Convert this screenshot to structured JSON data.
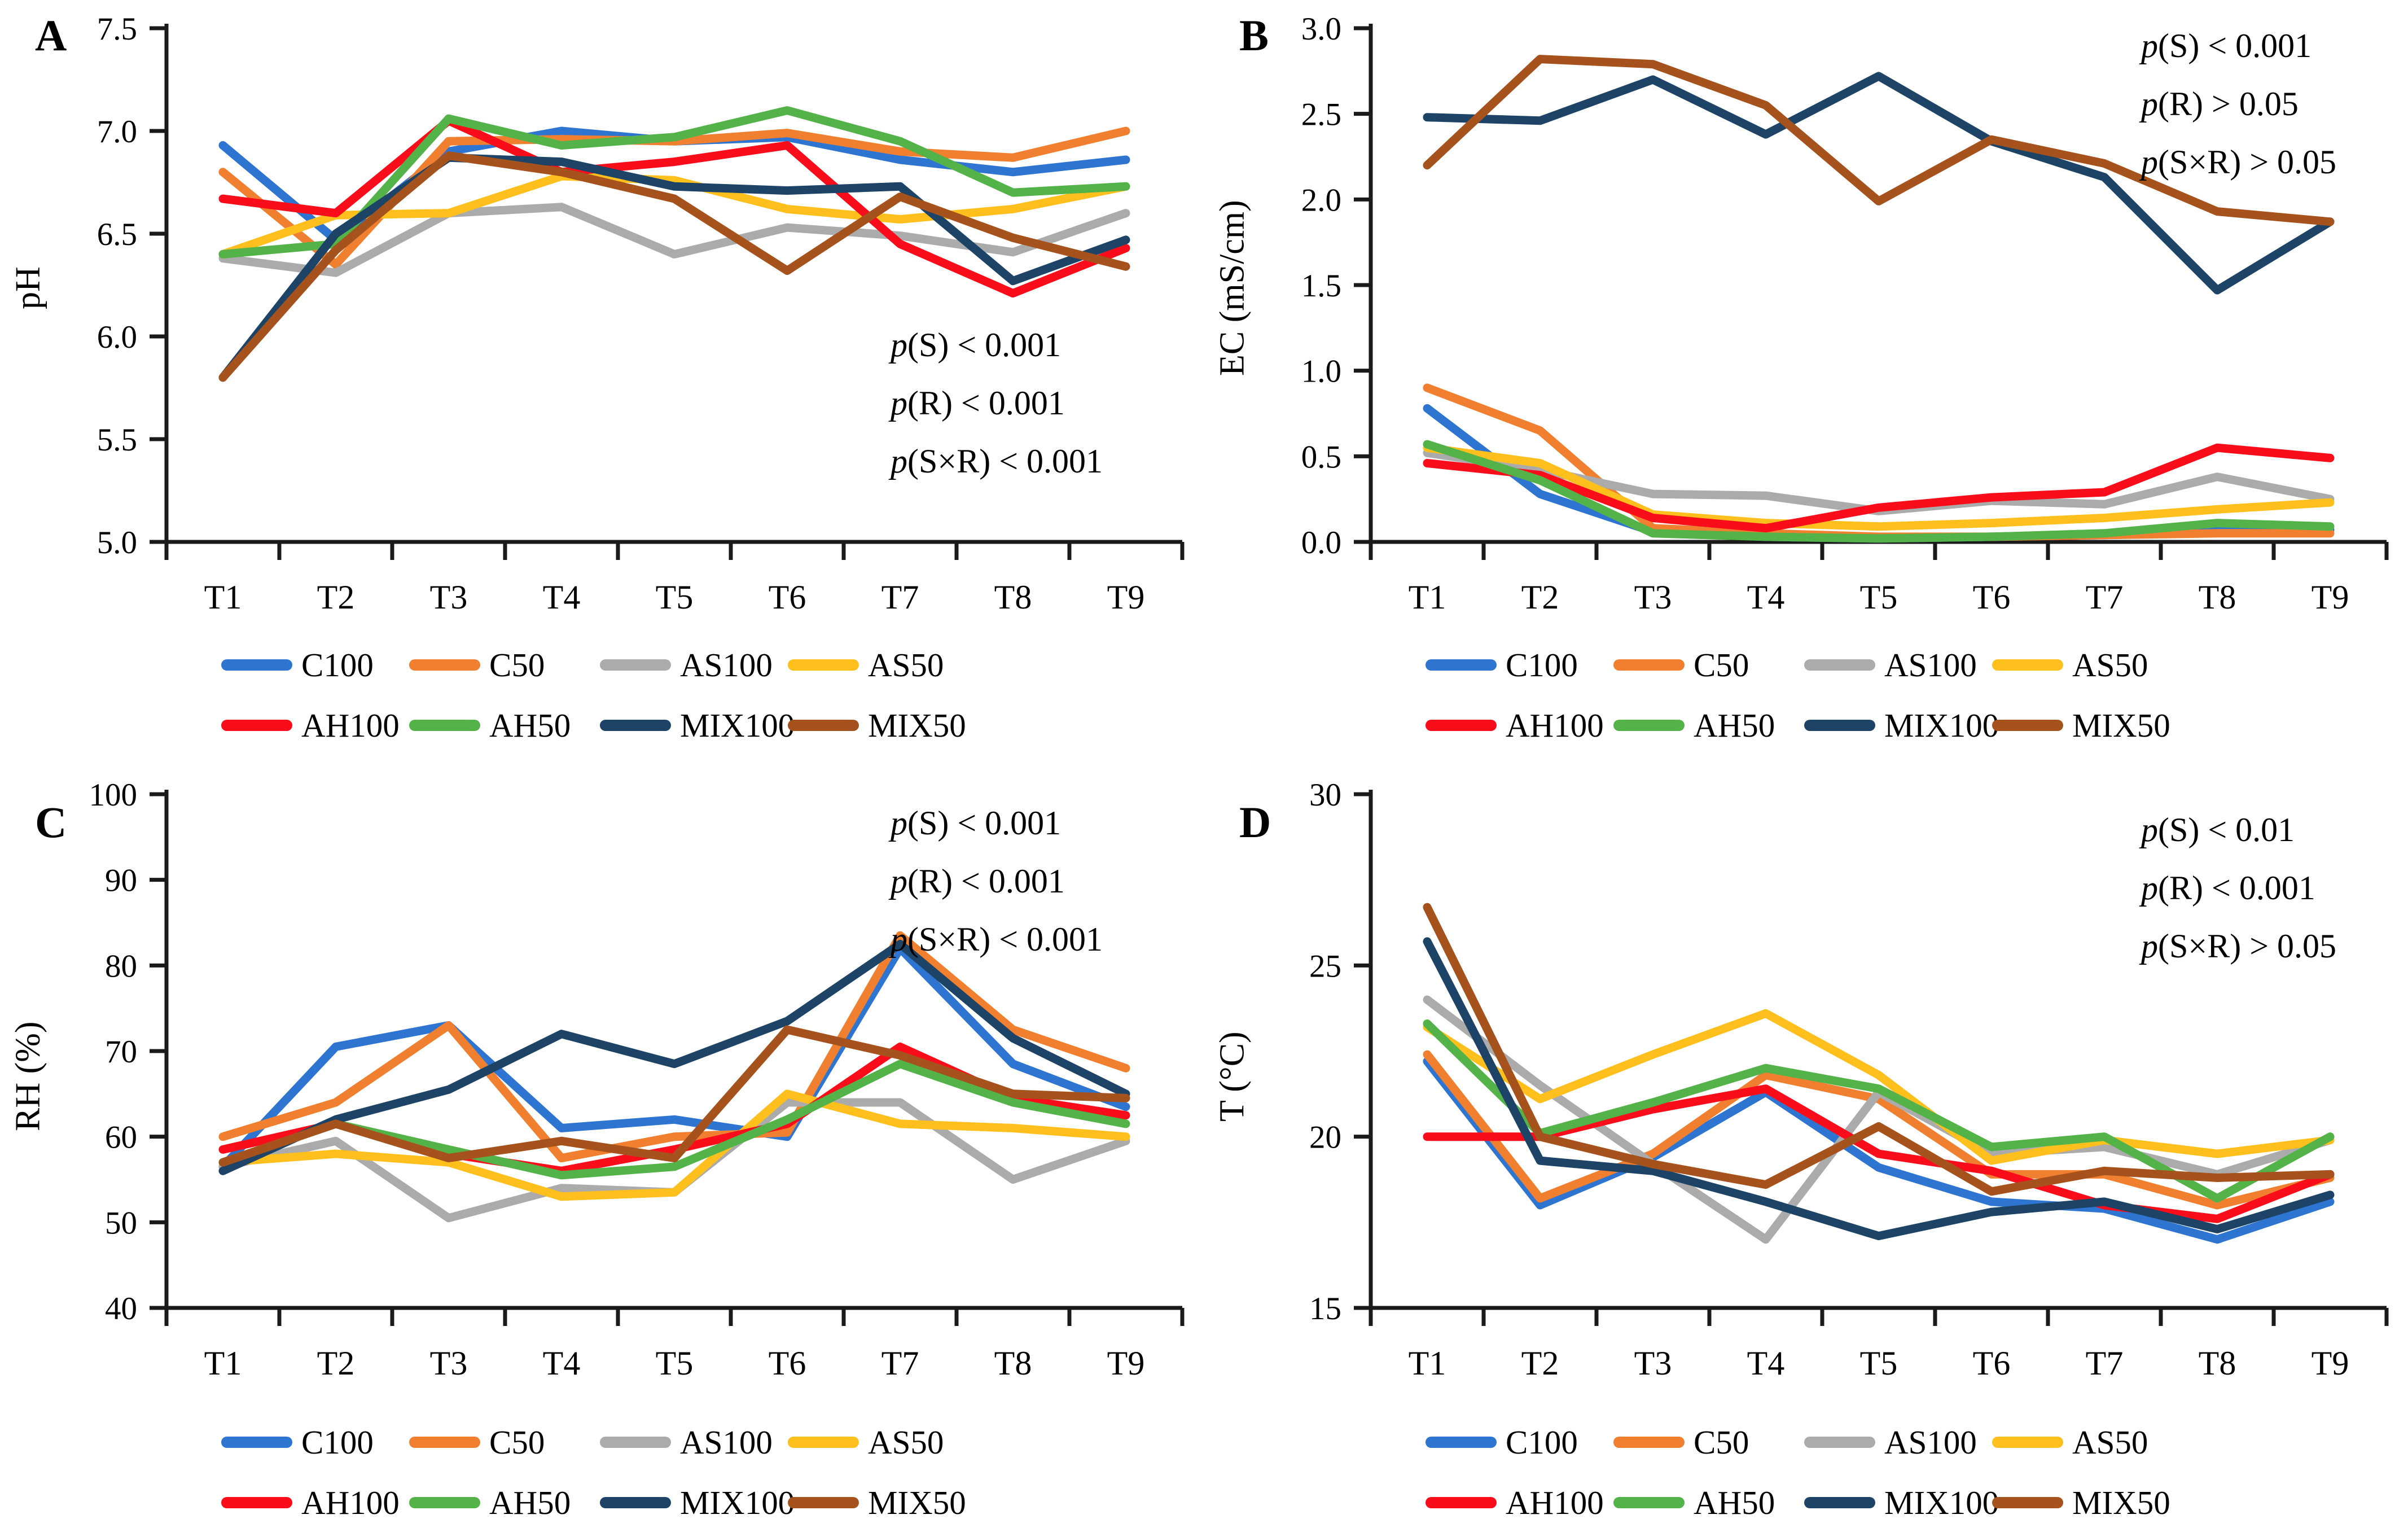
{
  "figure": {
    "background": "#ffffff",
    "colors": {
      "C100": "#2E75D2",
      "C50": "#F0802F",
      "AS100": "#ABABAB",
      "AS50": "#FFC01E",
      "AH100": "#F90D1B",
      "AH50": "#54B348",
      "MIX100": "#1D4466",
      "MIX50": "#A6521D"
    },
    "axis_color": "#1a1a1a",
    "legend": {
      "items": [
        {
          "key": "C100",
          "label": "C100"
        },
        {
          "key": "C50",
          "label": "C50"
        },
        {
          "key": "AS100",
          "label": "AS100"
        },
        {
          "key": "AS50",
          "label": "AS50"
        },
        {
          "key": "AH100",
          "label": "AH100"
        },
        {
          "key": "AH50",
          "label": "AH50"
        },
        {
          "key": "MIX100",
          "label": "MIX100"
        },
        {
          "key": "MIX50",
          "label": "MIX50"
        }
      ]
    }
  },
  "chart_data": [
    {
      "panel": "A",
      "type": "line",
      "ylabel": "pH",
      "categories": [
        "T1",
        "T2",
        "T3",
        "T4",
        "T5",
        "T6",
        "T7",
        "T8",
        "T9"
      ],
      "ylim": [
        5.0,
        7.5
      ],
      "ytick_step": 0.5,
      "ytick_decimals": 1,
      "grid": false,
      "legend_position": "bottom",
      "annotation": [
        {
          "p": "p",
          "rest": "(S) < 0.001"
        },
        {
          "p": "p",
          "rest": "(R) < 0.001"
        },
        {
          "p": "p",
          "rest": "(S×R) < 0.001"
        }
      ],
      "series": [
        {
          "name": "C100",
          "values": [
            6.93,
            6.47,
            6.9,
            7.0,
            6.95,
            6.97,
            6.86,
            6.8,
            6.86
          ]
        },
        {
          "name": "C50",
          "values": [
            6.8,
            6.35,
            6.95,
            6.96,
            6.95,
            6.99,
            6.9,
            6.87,
            7.0
          ]
        },
        {
          "name": "AS100",
          "values": [
            6.38,
            6.31,
            6.6,
            6.63,
            6.4,
            6.53,
            6.49,
            6.41,
            6.6
          ]
        },
        {
          "name": "AS50",
          "values": [
            6.4,
            6.59,
            6.6,
            6.78,
            6.76,
            6.62,
            6.57,
            6.62,
            6.73
          ]
        },
        {
          "name": "AH100",
          "values": [
            6.67,
            6.6,
            7.05,
            6.8,
            6.85,
            6.93,
            6.45,
            6.21,
            6.43
          ]
        },
        {
          "name": "AH50",
          "values": [
            6.4,
            6.45,
            7.06,
            6.93,
            6.97,
            7.1,
            6.95,
            6.7,
            6.73
          ]
        },
        {
          "name": "MIX100",
          "values": [
            5.8,
            6.5,
            6.87,
            6.85,
            6.73,
            6.71,
            6.73,
            6.27,
            6.47
          ]
        },
        {
          "name": "MIX50",
          "values": [
            5.8,
            6.42,
            6.88,
            6.8,
            6.67,
            6.32,
            6.68,
            6.48,
            6.34
          ]
        }
      ]
    },
    {
      "panel": "B",
      "type": "line",
      "ylabel": "EC (mS/cm)",
      "categories": [
        "T1",
        "T2",
        "T3",
        "T4",
        "T5",
        "T6",
        "T7",
        "T8",
        "T9"
      ],
      "ylim": [
        0.0,
        3.0
      ],
      "ytick_step": 0.5,
      "ytick_decimals": 1,
      "grid": false,
      "legend_position": "bottom",
      "annotation": [
        {
          "p": "p",
          "rest": "(S) < 0.001"
        },
        {
          "p": "p",
          "rest": "(R) > 0.05"
        },
        {
          "p": "p",
          "rest": "(S×R) > 0.05"
        }
      ],
      "series": [
        {
          "name": "C100",
          "values": [
            0.78,
            0.28,
            0.06,
            0.03,
            0.02,
            0.03,
            0.04,
            0.08,
            0.07
          ]
        },
        {
          "name": "C50",
          "values": [
            0.9,
            0.65,
            0.08,
            0.05,
            0.03,
            0.03,
            0.04,
            0.05,
            0.05
          ]
        },
        {
          "name": "AS100",
          "values": [
            0.52,
            0.42,
            0.28,
            0.27,
            0.18,
            0.24,
            0.22,
            0.38,
            0.25
          ]
        },
        {
          "name": "AS50",
          "values": [
            0.55,
            0.46,
            0.16,
            0.11,
            0.09,
            0.11,
            0.14,
            0.19,
            0.23
          ]
        },
        {
          "name": "AH100",
          "values": [
            0.46,
            0.39,
            0.14,
            0.08,
            0.2,
            0.26,
            0.29,
            0.55,
            0.49
          ]
        },
        {
          "name": "AH50",
          "values": [
            0.57,
            0.36,
            0.05,
            0.03,
            0.02,
            0.03,
            0.05,
            0.11,
            0.09
          ]
        },
        {
          "name": "MIX100",
          "values": [
            2.48,
            2.46,
            2.7,
            2.38,
            2.72,
            2.34,
            2.13,
            1.47,
            1.87
          ]
        },
        {
          "name": "MIX50",
          "values": [
            2.2,
            2.82,
            2.79,
            2.55,
            1.99,
            2.35,
            2.21,
            1.93,
            1.87
          ]
        }
      ]
    },
    {
      "panel": "C",
      "type": "line",
      "ylabel": "RH (%)",
      "categories": [
        "T1",
        "T2",
        "T3",
        "T4",
        "T5",
        "T6",
        "T7",
        "T8",
        "T9"
      ],
      "ylim": [
        40,
        100
      ],
      "ytick_step": 10,
      "ytick_decimals": 0,
      "grid": false,
      "legend_position": "bottom",
      "annotation": [
        {
          "p": "p",
          "rest": "(S) < 0.001"
        },
        {
          "p": "p",
          "rest": "(R) < 0.001"
        },
        {
          "p": "p",
          "rest": "(S×R) < 0.001"
        }
      ],
      "series": [
        {
          "name": "C100",
          "values": [
            56.5,
            70.5,
            73.0,
            61.0,
            62.0,
            60.0,
            82.0,
            68.5,
            63.5
          ]
        },
        {
          "name": "C50",
          "values": [
            60.0,
            64.0,
            73.0,
            57.5,
            60.0,
            60.5,
            83.5,
            72.5,
            68.0
          ]
        },
        {
          "name": "AS100",
          "values": [
            56.5,
            59.5,
            50.5,
            54.0,
            53.5,
            64.0,
            64.0,
            55.0,
            59.5
          ]
        },
        {
          "name": "AS50",
          "values": [
            57.0,
            58.0,
            57.0,
            53.0,
            53.5,
            65.0,
            61.5,
            61.0,
            60.0
          ]
        },
        {
          "name": "AH100",
          "values": [
            58.5,
            61.5,
            58.0,
            56.0,
            58.5,
            61.5,
            70.5,
            64.5,
            62.5
          ]
        },
        {
          "name": "AH50",
          "values": [
            57.0,
            61.5,
            58.5,
            55.5,
            56.5,
            62.0,
            68.5,
            64.0,
            61.5
          ]
        },
        {
          "name": "MIX100",
          "values": [
            56.0,
            62.0,
            65.5,
            72.0,
            68.5,
            73.5,
            82.5,
            71.5,
            65.0
          ]
        },
        {
          "name": "MIX50",
          "values": [
            57.0,
            61.5,
            57.5,
            59.5,
            57.5,
            72.5,
            69.5,
            65.0,
            64.5
          ]
        }
      ]
    },
    {
      "panel": "D",
      "type": "line",
      "ylabel": "T (°C)",
      "categories": [
        "T1",
        "T2",
        "T3",
        "T4",
        "T5",
        "T6",
        "T7",
        "T8",
        "T9"
      ],
      "ylim": [
        15,
        30
      ],
      "ytick_step": 5,
      "ytick_decimals": 0,
      "grid": false,
      "legend_position": "bottom",
      "annotation": [
        {
          "p": "p",
          "rest": "(S) < 0.01"
        },
        {
          "p": "p",
          "rest": "(R) < 0.001"
        },
        {
          "p": "p",
          "rest": "(S×R) > 0.05"
        }
      ],
      "series": [
        {
          "name": "C100",
          "values": [
            22.2,
            18.0,
            19.4,
            21.3,
            19.1,
            18.1,
            17.9,
            17.0,
            18.1
          ]
        },
        {
          "name": "C50",
          "values": [
            22.4,
            18.2,
            19.5,
            21.8,
            21.1,
            18.9,
            18.9,
            18.0,
            18.8
          ]
        },
        {
          "name": "AS100",
          "values": [
            24.0,
            21.5,
            19.2,
            17.0,
            21.3,
            19.5,
            19.7,
            18.9,
            19.9
          ]
        },
        {
          "name": "AS50",
          "values": [
            23.2,
            21.1,
            22.4,
            23.6,
            21.8,
            19.3,
            19.9,
            19.5,
            19.9
          ]
        },
        {
          "name": "AH100",
          "values": [
            20.0,
            20.0,
            20.8,
            21.4,
            19.5,
            19.0,
            18.0,
            17.6,
            18.9
          ]
        },
        {
          "name": "AH50",
          "values": [
            23.3,
            20.1,
            21.0,
            22.0,
            21.4,
            19.7,
            20.0,
            18.2,
            20.0
          ]
        },
        {
          "name": "MIX100",
          "values": [
            25.7,
            19.3,
            19.0,
            18.1,
            17.1,
            17.8,
            18.1,
            17.3,
            18.3
          ]
        },
        {
          "name": "MIX50",
          "values": [
            26.7,
            20.0,
            19.2,
            18.6,
            20.3,
            18.4,
            19.0,
            18.8,
            18.9
          ]
        }
      ]
    }
  ]
}
